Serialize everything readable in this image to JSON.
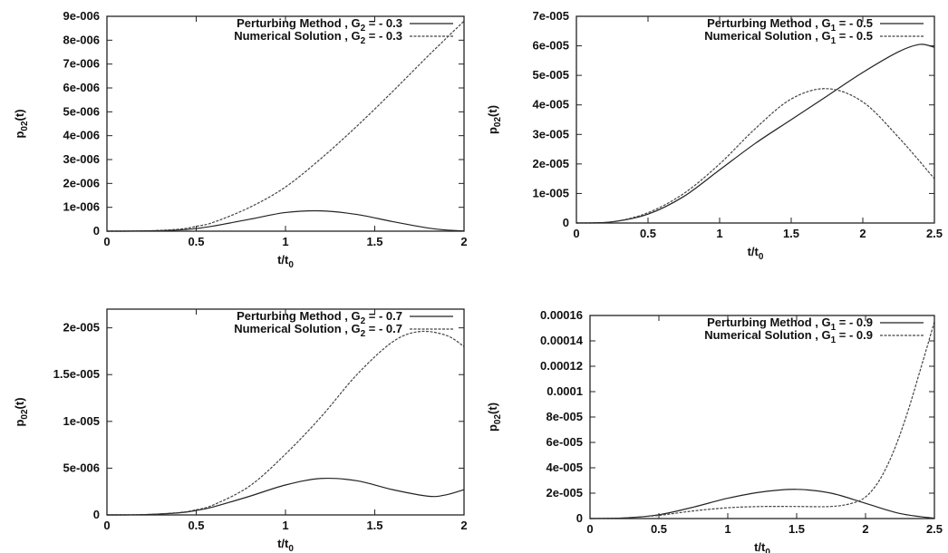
{
  "chart_data": [
    {
      "type": "line",
      "ylabel": "p02(t)",
      "xlabel": "t/t0",
      "xlim": [
        0,
        2
      ],
      "ylim": [
        0,
        9e-06
      ],
      "xticks": [
        "0",
        "0.5",
        "1",
        "1.5",
        "2"
      ],
      "yticks": [
        "0",
        "1e-006",
        "2e-006",
        "3e-006",
        "4e-006",
        "5e-006",
        "6e-006",
        "7e-006",
        "8e-006",
        "9e-006"
      ],
      "legend_position": "top-right",
      "series": [
        {
          "name": "Perturbing Method , G2 = - 0.3",
          "style": "solid",
          "x": [
            0,
            0.2,
            0.4,
            0.5,
            0.6,
            0.8,
            1.0,
            1.2,
            1.4,
            1.6,
            1.8,
            1.9,
            2.0
          ],
          "y": [
            0,
            1e-08,
            5e-08,
            1.1e-07,
            2.2e-07,
            5e-07,
            7.8e-07,
            8.5e-07,
            7e-07,
            4e-07,
            1.3e-07,
            5e-08,
            1e-08
          ]
        },
        {
          "name": "Numerical Solution , G2 = - 0.3",
          "style": "dashed",
          "x": [
            0,
            0.2,
            0.4,
            0.5,
            0.6,
            0.8,
            1.0,
            1.2,
            1.4,
            1.6,
            1.8,
            2.0
          ],
          "y": [
            0,
            1e-08,
            8e-08,
            2e-07,
            3.8e-07,
            1e-06,
            1.85e-06,
            3.05e-06,
            4.4e-06,
            5.85e-06,
            7.35e-06,
            8.8e-06
          ]
        }
      ]
    },
    {
      "type": "line",
      "ylabel": "p02(t)",
      "xlabel": "t/t0",
      "xlim": [
        0,
        2.5
      ],
      "ylim": [
        0,
        7e-05
      ],
      "xticks": [
        "0",
        "0.5",
        "1",
        "1.5",
        "2",
        "2.5"
      ],
      "yticks": [
        "0",
        "1e-005",
        "2e-005",
        "3e-005",
        "4e-005",
        "5e-005",
        "6e-005",
        "7e-005"
      ],
      "legend_position": "top-right",
      "series": [
        {
          "name": "Perturbing Method , G1 = - 0.5",
          "style": "solid",
          "x": [
            0,
            0.25,
            0.5,
            0.75,
            1.0,
            1.25,
            1.5,
            1.75,
            2.0,
            2.25,
            2.4,
            2.5
          ],
          "y": [
            0,
            4e-07,
            3e-06,
            9e-06,
            1.8e-05,
            2.7e-05,
            3.5e-05,
            4.3e-05,
            5.1e-05,
            5.8e-05,
            6.05e-05,
            5.95e-05
          ]
        },
        {
          "name": "Numerical Solution , G1 = - 0.5",
          "style": "dashed",
          "x": [
            0,
            0.25,
            0.5,
            0.75,
            1.0,
            1.25,
            1.5,
            1.75,
            2.0,
            2.25,
            2.5
          ],
          "y": [
            0,
            4e-07,
            3.5e-06,
            1e-05,
            2e-05,
            3.2e-05,
            4.2e-05,
            4.55e-05,
            4.1e-05,
            2.9e-05,
            1.5e-05
          ]
        }
      ]
    },
    {
      "type": "line",
      "ylabel": "p02(t)",
      "xlabel": "t/t0",
      "xlim": [
        0,
        2
      ],
      "ylim": [
        0,
        2.2e-05
      ],
      "xticks": [
        "0",
        "0.5",
        "1",
        "1.5",
        "2"
      ],
      "yticks": [
        "0",
        "5e-006",
        "1e-005",
        "1.5e-005",
        "2e-005"
      ],
      "legend_position": "top-right",
      "series": [
        {
          "name": "Perturbing Method , G2 = - 0.7",
          "style": "solid",
          "x": [
            0,
            0.2,
            0.4,
            0.5,
            0.6,
            0.8,
            1.0,
            1.2,
            1.4,
            1.6,
            1.8,
            1.9,
            2.0
          ],
          "y": [
            0,
            3e-08,
            2.2e-07,
            4.7e-07,
            8.8e-07,
            2e-06,
            3.2e-06,
            3.9e-06,
            3.65e-06,
            2.7e-06,
            2e-06,
            2.15e-06,
            2.7e-06
          ]
        },
        {
          "name": "Numerical Solution , G2 = - 0.7",
          "style": "dashed",
          "x": [
            0,
            0.2,
            0.4,
            0.5,
            0.6,
            0.8,
            1.0,
            1.2,
            1.4,
            1.6,
            1.75,
            1.9,
            2.0
          ],
          "y": [
            0,
            3e-08,
            2.5e-07,
            5.5e-07,
            1.1e-06,
            3.1e-06,
            6.5e-06,
            1.05e-05,
            1.5e-05,
            1.85e-05,
            1.96e-05,
            1.92e-05,
            1.8e-05
          ]
        }
      ]
    },
    {
      "type": "line",
      "ylabel": "p02(t)",
      "xlabel": "t/t0",
      "xlim": [
        0,
        2.5
      ],
      "ylim": [
        0,
        0.00016
      ],
      "xticks": [
        "0",
        "0.5",
        "1",
        "1.5",
        "2",
        "2.5"
      ],
      "yticks": [
        "0",
        "2e-005",
        "4e-005",
        "6e-005",
        "8e-005",
        "0.0001",
        "0.00012",
        "0.00014",
        "0.00016"
      ],
      "legend_position": "top-right",
      "series": [
        {
          "name": "Perturbing Method , G1 = - 0.9",
          "style": "solid",
          "x": [
            0,
            0.25,
            0.5,
            0.75,
            1.0,
            1.25,
            1.5,
            1.75,
            2.0,
            2.25,
            2.5
          ],
          "y": [
            0,
            5e-07,
            3e-06,
            9e-06,
            1.6e-05,
            2.1e-05,
            2.3e-05,
            2e-05,
            1.2e-05,
            4e-06,
            2e-07
          ]
        },
        {
          "name": "Numerical Solution , G1 = - 0.9",
          "style": "dashed",
          "x": [
            0,
            0.25,
            0.5,
            0.75,
            1.0,
            1.25,
            1.5,
            1.75,
            1.9,
            2.0,
            2.1,
            2.2,
            2.3,
            2.4,
            2.5
          ],
          "y": [
            0,
            5e-07,
            2.5e-06,
            6e-06,
            8.5e-06,
            9.5e-06,
            9.5e-06,
            9.5e-06,
            1.2e-05,
            1.7e-05,
            3e-05,
            5.2e-05,
            8.2e-05,
            0.000118,
            0.000155
          ]
        }
      ]
    }
  ]
}
